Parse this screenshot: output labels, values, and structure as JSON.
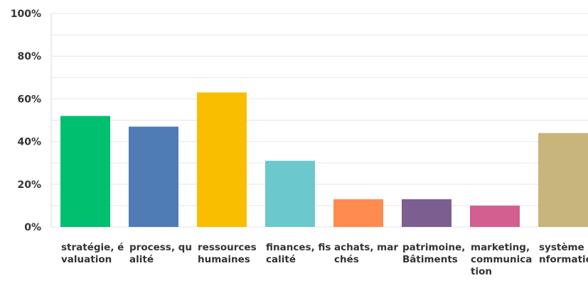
{
  "chart_data": {
    "type": "bar",
    "categories": [
      "stratégie, évaluation",
      "process, qualité",
      "ressources humaines",
      "finances, fiscalité",
      "achats, marchés",
      "patrimoine, Bâtiments",
      "marketing, communication",
      "système d’information"
    ],
    "values": [
      52,
      47,
      63,
      31,
      13,
      13,
      10,
      44
    ],
    "colors": [
      "#00bf6f",
      "#507cb6",
      "#f9be00",
      "#6bc8cd",
      "#ff8b4f",
      "#7d5e90",
      "#d25f90",
      "#c8b57c"
    ],
    "ylim": [
      0,
      100
    ],
    "yticks": [
      0,
      20,
      40,
      60,
      80,
      100
    ],
    "ytick_labels": [
      "0%",
      "20%",
      "40%",
      "60%",
      "80%",
      "100%"
    ],
    "grid": true,
    "title": "",
    "xlabel": "",
    "ylabel": ""
  }
}
